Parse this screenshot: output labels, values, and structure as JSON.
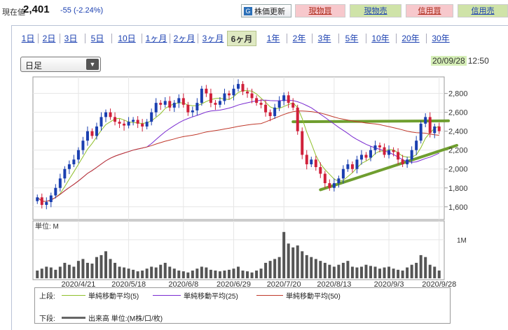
{
  "header": {
    "price_label": "現在値",
    "price": "2,401",
    "change": "-55 (-2.24%)",
    "refresh_label": "株価更新",
    "buttons": [
      "現物買",
      "現物売",
      "信用買",
      "信用売"
    ]
  },
  "period_tabs": [
    "1日",
    "2日",
    "3日",
    "5日",
    "10日",
    "1ヶ月",
    "2ヶ月",
    "3ヶ月",
    "6ヶ月",
    "1年",
    "2年",
    "3年",
    "5年",
    "10年",
    "20年",
    "30年"
  ],
  "active_tab": "6ヶ月",
  "interval_select": {
    "value": "日足"
  },
  "timestamp": {
    "date": "20/09/28",
    "time": "12:50"
  },
  "chart_data": {
    "type": "candlestick",
    "price_axis": {
      "ticks": [
        1600,
        1800,
        2000,
        2200,
        2400,
        2600,
        2800
      ],
      "tick_labels": [
        "1,600",
        "1,800",
        "2,000",
        "2,200",
        "2,400",
        "2,600",
        "2,800"
      ],
      "range": [
        1480,
        2960
      ]
    },
    "volume_axis": {
      "unit_label": "単位: M",
      "ticks": [
        {
          "value": 1,
          "label": "1M"
        }
      ],
      "range": [
        0,
        1.45
      ]
    },
    "x_tick_labels": [
      "2020/4/21",
      "2020/5/18",
      "2020/6/8",
      "2020/6/29",
      "2020/7/20",
      "2020/8/13",
      "2020/9/3",
      "2020/9/28"
    ],
    "closes": [
      1700,
      1620,
      1650,
      1720,
      1800,
      1900,
      2000,
      2050,
      2100,
      2200,
      2300,
      2400,
      2350,
      2450,
      2550,
      2600,
      2550,
      2500,
      2480,
      2460,
      2500,
      2520,
      2480,
      2450,
      2500,
      2600,
      2700,
      2680,
      2720,
      2650,
      2700,
      2750,
      2680,
      2600,
      2620,
      2700,
      2850,
      2800,
      2700,
      2680,
      2720,
      2800,
      2780,
      2850,
      2900,
      2820,
      2800,
      2750,
      2700,
      2680,
      2600,
      2560,
      2650,
      2720,
      2780,
      2700,
      2650,
      2400,
      2150,
      2050,
      2100,
      2020,
      1950,
      1850,
      1800,
      1850,
      1900,
      2000,
      2050,
      2000,
      2100,
      2150,
      2120,
      2200,
      2250,
      2230,
      2150,
      2200,
      2180,
      2100,
      2050,
      2100,
      2200,
      2300,
      2480,
      2550,
      2380,
      2450,
      2401
    ],
    "volumes": [
      0.2,
      0.25,
      0.3,
      0.28,
      0.22,
      0.3,
      0.4,
      0.35,
      0.3,
      0.45,
      0.5,
      0.4,
      0.38,
      0.55,
      0.6,
      0.7,
      0.5,
      0.4,
      0.3,
      0.28,
      0.25,
      0.22,
      0.18,
      0.2,
      0.25,
      0.3,
      0.28,
      0.35,
      0.4,
      0.3,
      0.25,
      0.2,
      0.18,
      0.15,
      0.2,
      0.25,
      0.3,
      0.28,
      0.22,
      0.2,
      0.18,
      0.2,
      0.22,
      0.25,
      0.3,
      0.2,
      0.18,
      0.15,
      0.2,
      0.25,
      0.4,
      0.45,
      0.5,
      0.55,
      1.2,
      0.9,
      0.8,
      0.85,
      0.7,
      0.6,
      0.55,
      0.5,
      0.45,
      0.4,
      0.35,
      0.3,
      0.35,
      0.4,
      0.45,
      0.3,
      0.28,
      0.3,
      0.35,
      0.32,
      0.3,
      0.25,
      0.28,
      0.3,
      0.25,
      0.22,
      0.2,
      0.28,
      0.35,
      0.4,
      0.6,
      0.55,
      0.35,
      0.3,
      0.2
    ],
    "series": [
      {
        "name": "単純移動平均(5)",
        "color": "#8fbf2a"
      },
      {
        "name": "単純移動平均(25)",
        "color": "#7a2bd1"
      },
      {
        "name": "単純移動平均(50)",
        "color": "#c0392b"
      }
    ],
    "trendlines_color": "#6f9e2f",
    "up_color": "#1a3fb0",
    "down_color": "#d0203a"
  },
  "legend": {
    "upper_label": "上段:",
    "lower_label": "下段:",
    "ma5": "単純移動平均(5)",
    "ma25": "単純移動平均(25)",
    "ma50": "単純移動平均(50)",
    "volume": "出来高 単位:(M株/口/枚)"
  }
}
